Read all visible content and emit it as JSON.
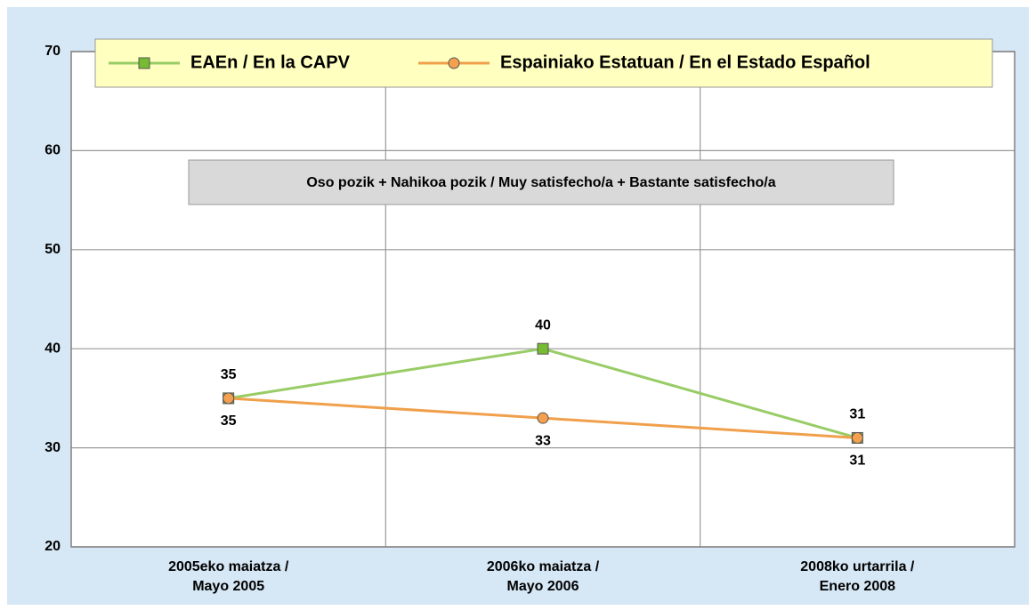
{
  "chart_data": {
    "type": "line",
    "annotation": "Oso pozik + Nahikoa pozik / Muy satisfecho/a + Bastante satisfecho/a",
    "categories": [
      "2005eko maiatza  /\nMayo 2005",
      "2006ko maiatza /\nMayo 2006",
      "2008ko urtarrila /\nEnero 2008"
    ],
    "series": [
      {
        "name": "EAEn / En la CAPV",
        "color": "#99cc66",
        "marker_color": "#77bb33",
        "marker": "square",
        "values": [
          35,
          40,
          31
        ]
      },
      {
        "name": "Espainiako Estatuan / En el Estado Español",
        "color": "#f0a04b",
        "marker_color": "#f5a04f",
        "marker": "circle",
        "values": [
          35,
          33,
          31
        ]
      }
    ],
    "ylim": [
      20,
      70
    ],
    "yticks": [
      20,
      30,
      40,
      50,
      60,
      70
    ],
    "grid": true
  }
}
